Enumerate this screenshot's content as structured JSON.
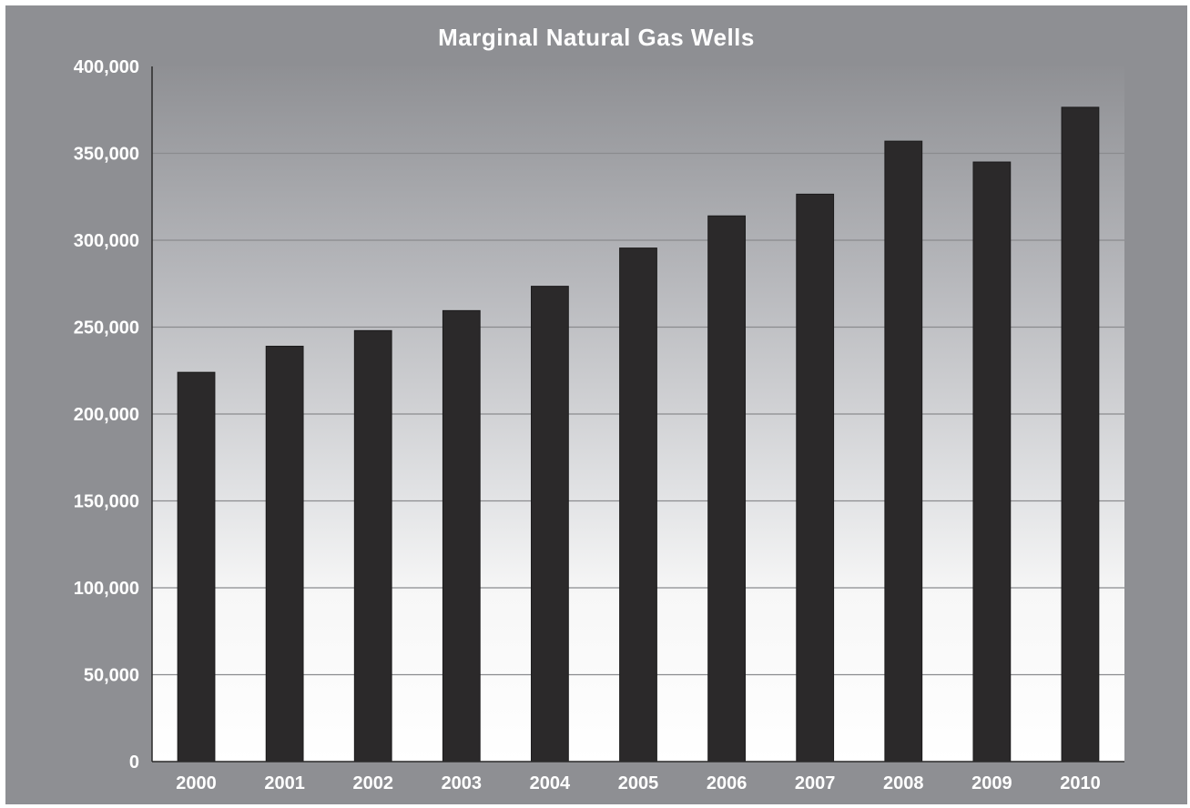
{
  "chart_data": {
    "type": "bar",
    "title": "Marginal Natural Gas Wells",
    "xlabel": "",
    "ylabel": "",
    "categories": [
      "2000",
      "2001",
      "2002",
      "2003",
      "2004",
      "2005",
      "2006",
      "2007",
      "2008",
      "2009",
      "2010"
    ],
    "values": [
      224000,
      239000,
      248000,
      259500,
      273500,
      295500,
      314000,
      326500,
      357000,
      345000,
      376500
    ],
    "ylim": [
      0,
      400000
    ],
    "yticks": [
      0,
      50000,
      100000,
      150000,
      200000,
      250000,
      300000,
      350000,
      400000
    ],
    "ytick_labels": [
      "0",
      "50,000",
      "100,000",
      "150,000",
      "200,000",
      "250,000",
      "300,000",
      "350,000",
      "400,000"
    ],
    "grid": true,
    "legend": "none",
    "colors": {
      "frame": "#8e8f93",
      "bar": "#2b292a",
      "gridline": "#8a8b8e",
      "text": "#ffffff"
    }
  }
}
